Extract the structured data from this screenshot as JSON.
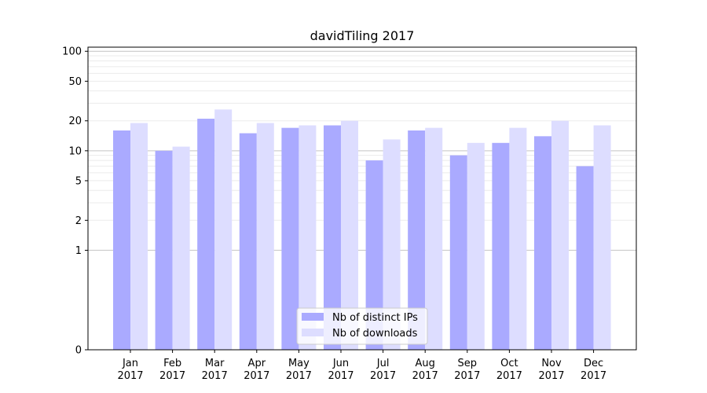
{
  "chart_data": {
    "type": "bar",
    "title": "davidTiling 2017",
    "xlabel": "",
    "ylabel": "",
    "yscale": "symlog",
    "ylim": [
      0,
      110
    ],
    "yticks": [
      0,
      1,
      2,
      5,
      10,
      20,
      50,
      100
    ],
    "grid": "horizontal",
    "legend": "bottom-center",
    "categories": [
      [
        "Jan",
        "2017"
      ],
      [
        "Feb",
        "2017"
      ],
      [
        "Mar",
        "2017"
      ],
      [
        "Apr",
        "2017"
      ],
      [
        "May",
        "2017"
      ],
      [
        "Jun",
        "2017"
      ],
      [
        "Jul",
        "2017"
      ],
      [
        "Aug",
        "2017"
      ],
      [
        "Sep",
        "2017"
      ],
      [
        "Oct",
        "2017"
      ],
      [
        "Nov",
        "2017"
      ],
      [
        "Dec",
        "2017"
      ]
    ],
    "series": [
      {
        "name": "Nb of distinct IPs",
        "color": "#aaaaff",
        "values": [
          16,
          10,
          21,
          15,
          17,
          18,
          8,
          16,
          9,
          12,
          14,
          7
        ]
      },
      {
        "name": "Nb of downloads",
        "color": "#ddddff",
        "values": [
          19,
          11,
          26,
          19,
          18,
          20,
          13,
          17,
          12,
          17,
          20,
          18
        ]
      }
    ]
  }
}
